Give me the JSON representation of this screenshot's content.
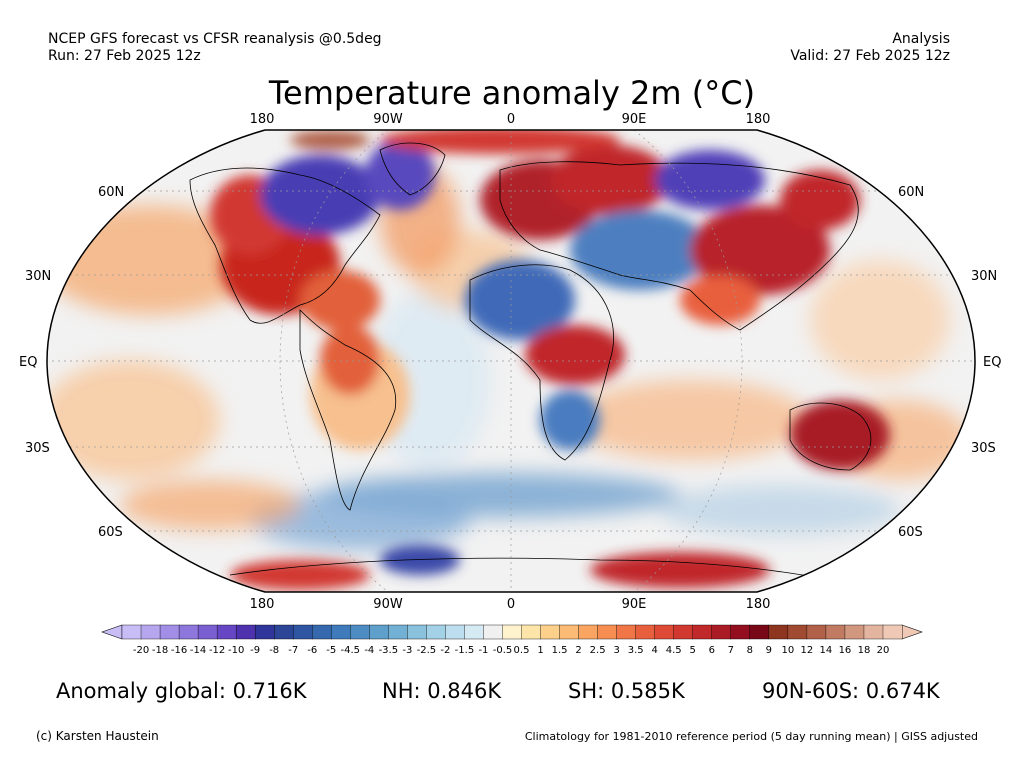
{
  "header": {
    "line1_left": "NCEP GFS forecast vs CFSR reanalysis @0.5deg",
    "line2_left": "Run: 27 Feb 2025 12z",
    "line1_right": "Analysis",
    "line2_right": "Valid: 27 Feb 2025 12z"
  },
  "title": "Temperature anomaly 2m (°C)",
  "map": {
    "projection": "Robinson",
    "lon_labels": [
      "180",
      "90W",
      "0",
      "90E",
      "180"
    ],
    "lat_labels_left": [
      "60N",
      "30N",
      "EQ",
      "30S",
      "60S"
    ],
    "lat_labels_right": [
      "60N",
      "30N",
      "EQ",
      "30S",
      "60S"
    ],
    "anomaly_regions": [
      {
        "area": "North America interior / US",
        "anomaly": "warm"
      },
      {
        "area": "Northern Canada / Hudson Bay",
        "anomaly": "cold"
      },
      {
        "area": "Greenland",
        "anomaly": "cold"
      },
      {
        "area": "Europe / Scandinavia",
        "anomaly": "warm"
      },
      {
        "area": "Middle East / Caspian",
        "anomaly": "cold"
      },
      {
        "area": "Central Siberia",
        "anomaly": "cold"
      },
      {
        "area": "China / Central Asia",
        "anomaly": "warm"
      },
      {
        "area": "North Africa",
        "anomaly": "cold"
      },
      {
        "area": "Central Africa",
        "anomaly": "warm"
      },
      {
        "area": "Australia",
        "anomaly": "warm"
      },
      {
        "area": "Southern Ocean",
        "anomaly": "cold"
      },
      {
        "area": "East Antarctica",
        "anomaly": "warm"
      }
    ],
    "colors": {
      "warm": "#c8281e",
      "cold": "#4a3cb4",
      "neutral": "#f2f2f2"
    }
  },
  "colorbar": {
    "labels": [
      "-20",
      "-18",
      "-16",
      "-14",
      "-12",
      "-10",
      "-9",
      "-8",
      "-7",
      "-6",
      "-5",
      "-4.5",
      "-4",
      "-3.5",
      "-3",
      "-2.5",
      "-2",
      "-1.5",
      "-1",
      "-0.5",
      "0.5",
      "1",
      "1.5",
      "2",
      "2.5",
      "3",
      "3.5",
      "4",
      "4.5",
      "5",
      "6",
      "7",
      "8",
      "9",
      "10",
      "12",
      "14",
      "16",
      "18",
      "20"
    ],
    "colors": [
      "#c9bdf5",
      "#b6a6ee",
      "#a28ee6",
      "#8d76dc",
      "#7a5fd2",
      "#6646c2",
      "#4f32ae",
      "#30359c",
      "#2c4596",
      "#2f56a2",
      "#3668ae",
      "#3f7bba",
      "#4d8dc3",
      "#5e9fcb",
      "#73b1d4",
      "#8ac1dd",
      "#a3d1e6",
      "#bddeee",
      "#d6eaf4",
      "#f0f0f0",
      "#fff2cc",
      "#fde4a8",
      "#fcd08a",
      "#fbbb74",
      "#f9a461",
      "#f68e52",
      "#f07647",
      "#e85f3e",
      "#de4a36",
      "#d13830",
      "#c0282a",
      "#aa1b25",
      "#930f1f",
      "#780718",
      "#8e3520",
      "#a04a32",
      "#b06148",
      "#c17b62",
      "#d2977f",
      "#e3b49f",
      "#efc9b5"
    ]
  },
  "stats": {
    "global": "Anomaly global: 0.716K",
    "nh": "NH: 0.846K",
    "sh": "SH: 0.585K",
    "arctic": "90N-60S: 0.674K"
  },
  "footer": {
    "credit": "(c) Karsten Haustein",
    "climatology": "Climatology for 1981-2010 reference period (5 day running mean) | GISS adjusted"
  }
}
